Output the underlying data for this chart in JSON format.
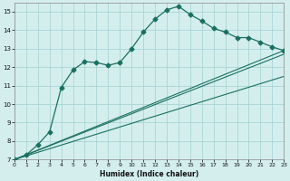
{
  "xlabel": "Humidex (Indice chaleur)",
  "bg_color": "#d4eeee",
  "line_color": "#1a7060",
  "grid_color": "#aad4d4",
  "xlim": [
    0,
    23
  ],
  "ylim": [
    7,
    15.5
  ],
  "xticks": [
    0,
    1,
    2,
    3,
    4,
    5,
    6,
    7,
    8,
    9,
    10,
    11,
    12,
    13,
    14,
    15,
    16,
    17,
    18,
    19,
    20,
    21,
    22,
    23
  ],
  "yticks": [
    7,
    8,
    9,
    10,
    11,
    12,
    13,
    14,
    15
  ],
  "main_curve": {
    "x": [
      0,
      1,
      2,
      3,
      4,
      5,
      6,
      7,
      8,
      9,
      10,
      11,
      12,
      13,
      14,
      15,
      16,
      17,
      18,
      19,
      20,
      21,
      22,
      23
    ],
    "y": [
      7.0,
      7.25,
      7.8,
      8.5,
      10.9,
      11.85,
      12.3,
      12.25,
      12.1,
      12.25,
      13.0,
      13.9,
      14.6,
      15.1,
      15.3,
      14.85,
      14.5,
      14.1,
      13.9,
      13.6,
      13.6,
      13.35,
      13.1,
      12.9
    ]
  },
  "straight_lines": [
    {
      "x": [
        0,
        23
      ],
      "y": [
        7.0,
        12.9
      ]
    },
    {
      "x": [
        0,
        23
      ],
      "y": [
        7.0,
        12.7
      ]
    },
    {
      "x": [
        0,
        23
      ],
      "y": [
        7.0,
        11.5
      ]
    }
  ]
}
